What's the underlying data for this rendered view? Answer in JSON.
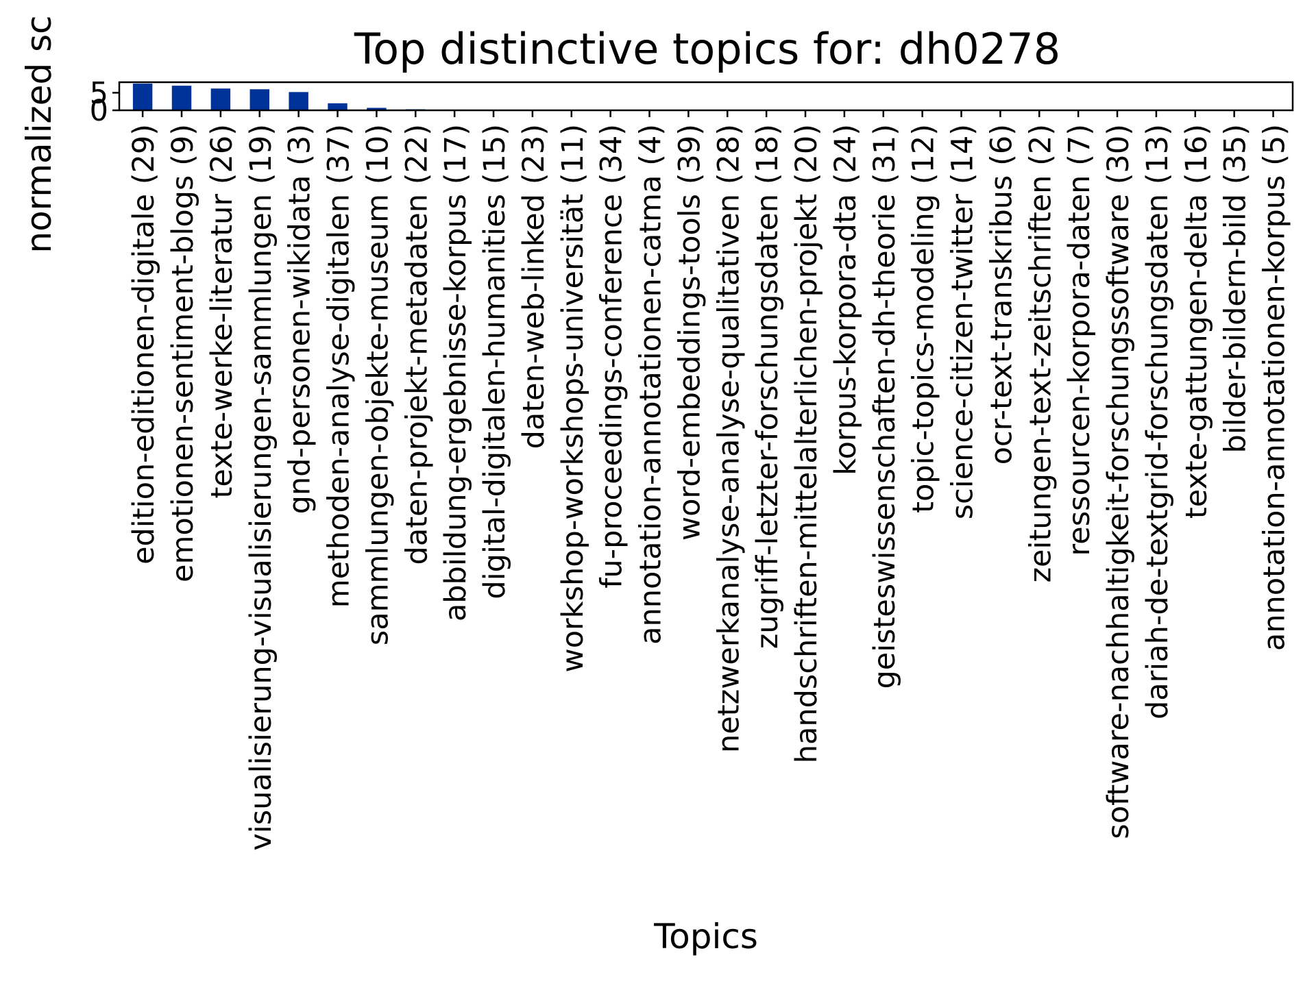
{
  "chart_data": {
    "type": "bar",
    "title": "Top distinctive topics for: dh0278",
    "xlabel": "Topics",
    "ylabel": "normalized sc",
    "ylim": [
      0,
      8
    ],
    "yticks": [
      0,
      5
    ],
    "grid": false,
    "bar_color": "#003399",
    "categories": [
      "edition-editionen-digitale (29)",
      "emotionen-sentiment-blogs (9)",
      "texte-werke-literatur (26)",
      "visualisierung-visualisierungen-sammlungen (19)",
      "gnd-personen-wikidata (3)",
      "methoden-analyse-digitalen (37)",
      "sammlungen-objekte-museum (10)",
      "daten-projekt-metadaten (22)",
      "abbildung-ergebnisse-korpus (17)",
      "digital-digitalen-humanities (15)",
      "daten-web-linked (23)",
      "workshop-workshops-universität (11)",
      "fu-proceedings-conference (34)",
      "annotation-annotationen-catma (4)",
      "word-embeddings-tools (39)",
      "netzwerkanalyse-analyse-qualitativen (28)",
      "zugriff-letzter-forschungsdaten (18)",
      "handschriften-mittelalterlichen-projekt (20)",
      "korpus-korpora-dta (24)",
      "geisteswissenschaften-dh-theorie (31)",
      "topic-topics-modeling (12)",
      "science-citizen-twitter (14)",
      "ocr-text-transkribus (6)",
      "zeitungen-text-zeitschriften (2)",
      "ressourcen-korpora-daten (7)",
      "software-nachhaltigkeit-forschungssoftware (30)",
      "dariah-de-textgrid-forschungsdaten (13)",
      "texte-gattungen-delta (16)",
      "bilder-bildern-bild (35)",
      "annotation-annotationen-korpus (5)"
    ],
    "values": [
      7.6,
      7.0,
      6.2,
      6.0,
      5.2,
      2.0,
      0.7,
      0.3,
      0.2,
      0.05,
      0.03,
      0.02,
      0.02,
      0.01,
      0.01,
      0.01,
      0.01,
      0.01,
      0.01,
      0.01,
      0.01,
      0.01,
      0.01,
      0.01,
      0.01,
      0.01,
      0.01,
      0.01,
      0.01,
      0.01
    ]
  }
}
